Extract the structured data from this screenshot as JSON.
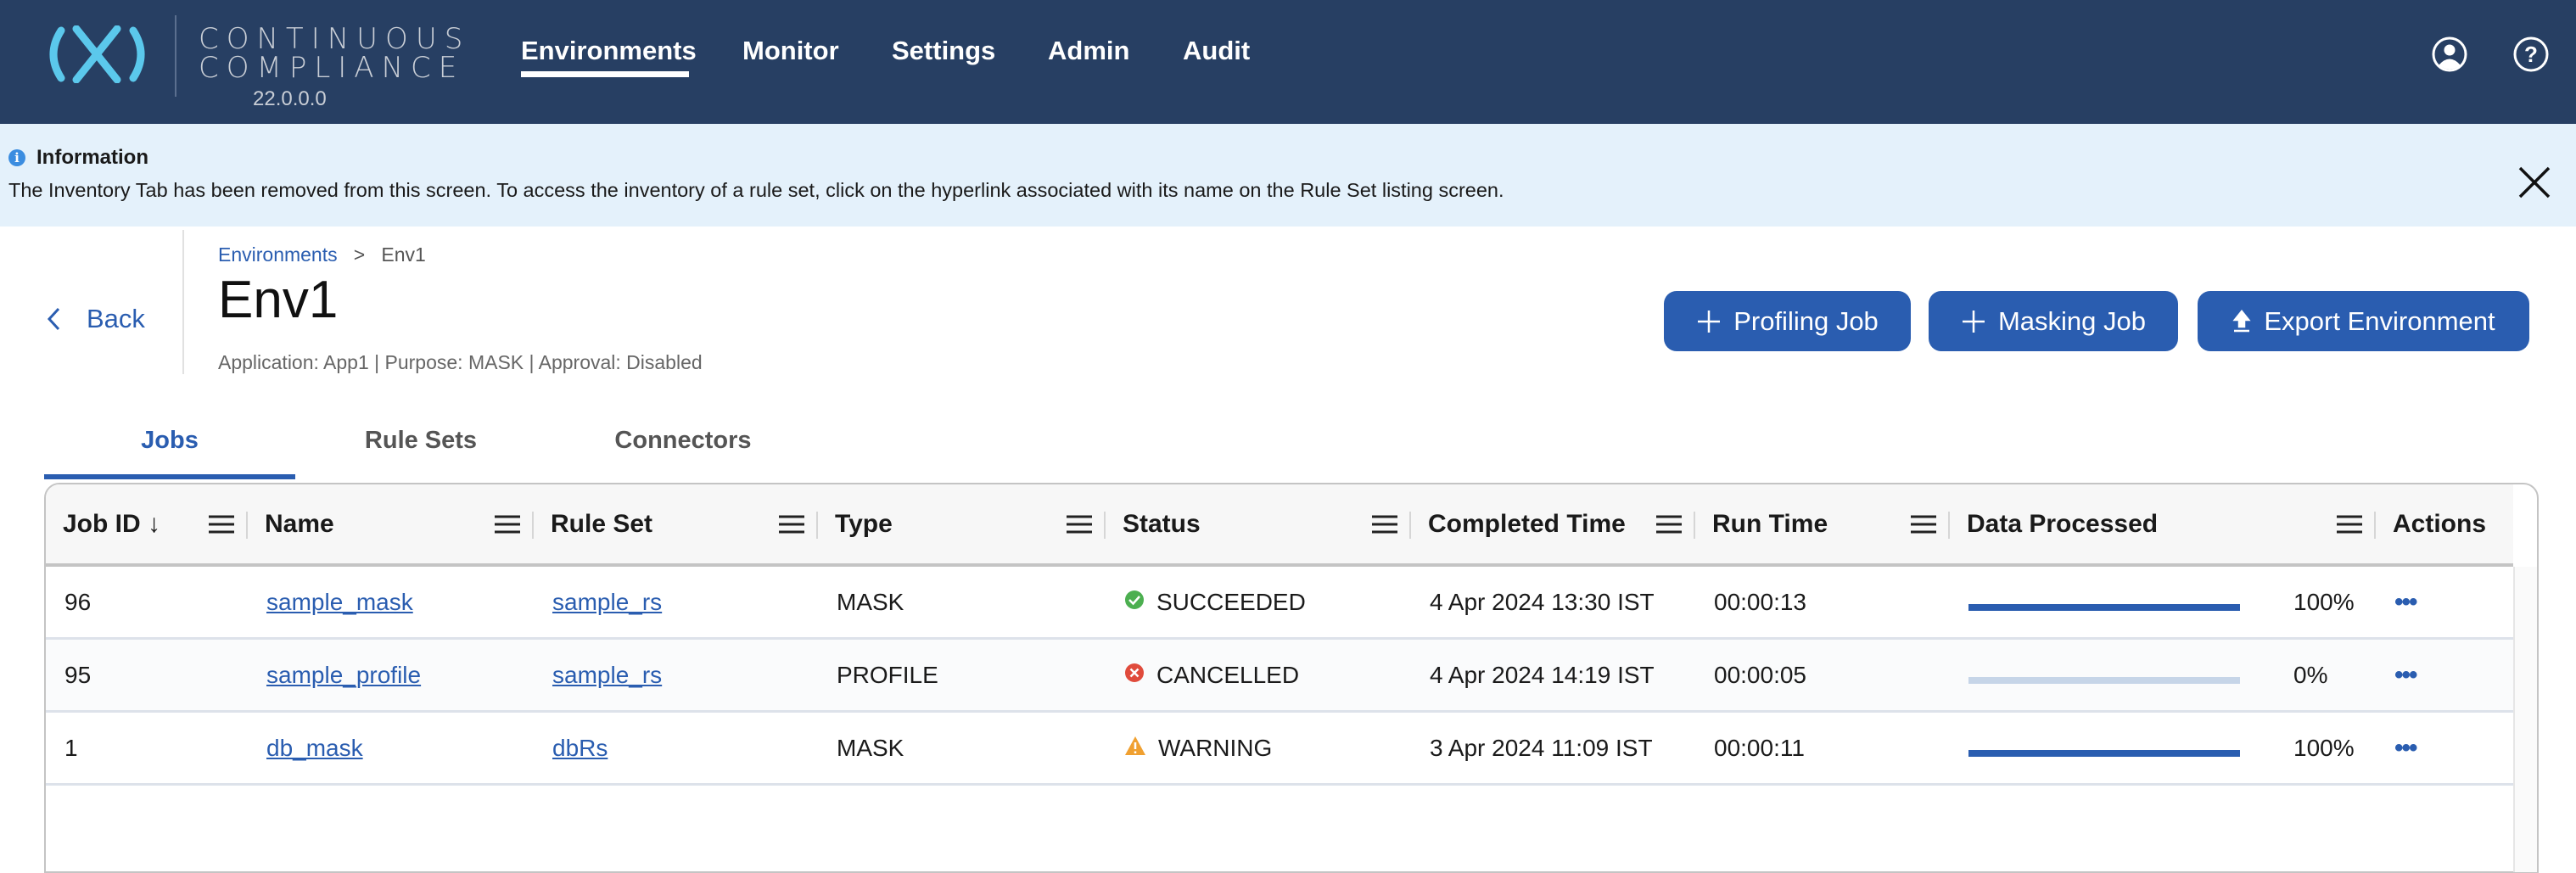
{
  "header": {
    "brand_line1": "CONTINUOUS",
    "brand_line2": "COMPLIANCE",
    "version": "22.0.0.0",
    "nav": [
      {
        "label": "Environments",
        "active": true
      },
      {
        "label": "Monitor"
      },
      {
        "label": "Settings"
      },
      {
        "label": "Admin"
      },
      {
        "label": "Audit"
      }
    ],
    "icons": [
      "user-icon",
      "help-icon"
    ],
    "color": "#273f63"
  },
  "banner": {
    "title": "Information",
    "message": "The Inventory Tab has been removed from this screen. To access the inventory of a rule set, click on the hyperlink associated with its name on the Rule Set listing screen.",
    "color": "#e4f1fb"
  },
  "breadcrumb": {
    "parent": "Environments",
    "separator": ">",
    "current": "Env1"
  },
  "page": {
    "back_label": "Back",
    "title": "Env1",
    "subtitle": "Application: App1 | Purpose: MASK | Approval: Disabled"
  },
  "actions": {
    "profiling_job": "Profiling Job",
    "masking_job": "Masking Job",
    "export_environment": "Export Environment",
    "accent": "#2a5db0"
  },
  "tabs": [
    {
      "label": "Jobs",
      "active": true
    },
    {
      "label": "Rule Sets"
    },
    {
      "label": "Connectors"
    }
  ],
  "table": {
    "columns": [
      "Job ID",
      "Name",
      "Rule Set",
      "Type",
      "Status",
      "Completed Time",
      "Run Time",
      "Data Processed",
      "Actions"
    ],
    "sort_indicator": "↓",
    "rows": [
      {
        "id": "96",
        "name": "sample_mask",
        "rule_set": "sample_rs",
        "type": "MASK",
        "status": "SUCCEEDED",
        "status_icon": "check-circle-icon",
        "completed": "4 Apr 2024 13:30 IST",
        "run_time": "00:00:13",
        "progress": 100,
        "progress_label": "100%"
      },
      {
        "id": "95",
        "name": "sample_profile",
        "rule_set": "sample_rs",
        "type": "PROFILE",
        "status": "CANCELLED",
        "status_icon": "x-circle-icon",
        "completed": "4 Apr 2024 14:19 IST",
        "run_time": "00:00:05",
        "progress": 0,
        "progress_label": "0%"
      },
      {
        "id": "1",
        "name": "db_mask",
        "rule_set": "dbRs",
        "type": "MASK",
        "status": "WARNING",
        "status_icon": "warning-icon",
        "completed": "3 Apr 2024 11:09 IST",
        "run_time": "00:00:11",
        "progress": 100,
        "progress_label": "100%"
      }
    ],
    "status_colors": {
      "SUCCEEDED": "#4caf50",
      "CANCELLED": "#e04b3c",
      "WARNING": "#f0a030"
    }
  }
}
